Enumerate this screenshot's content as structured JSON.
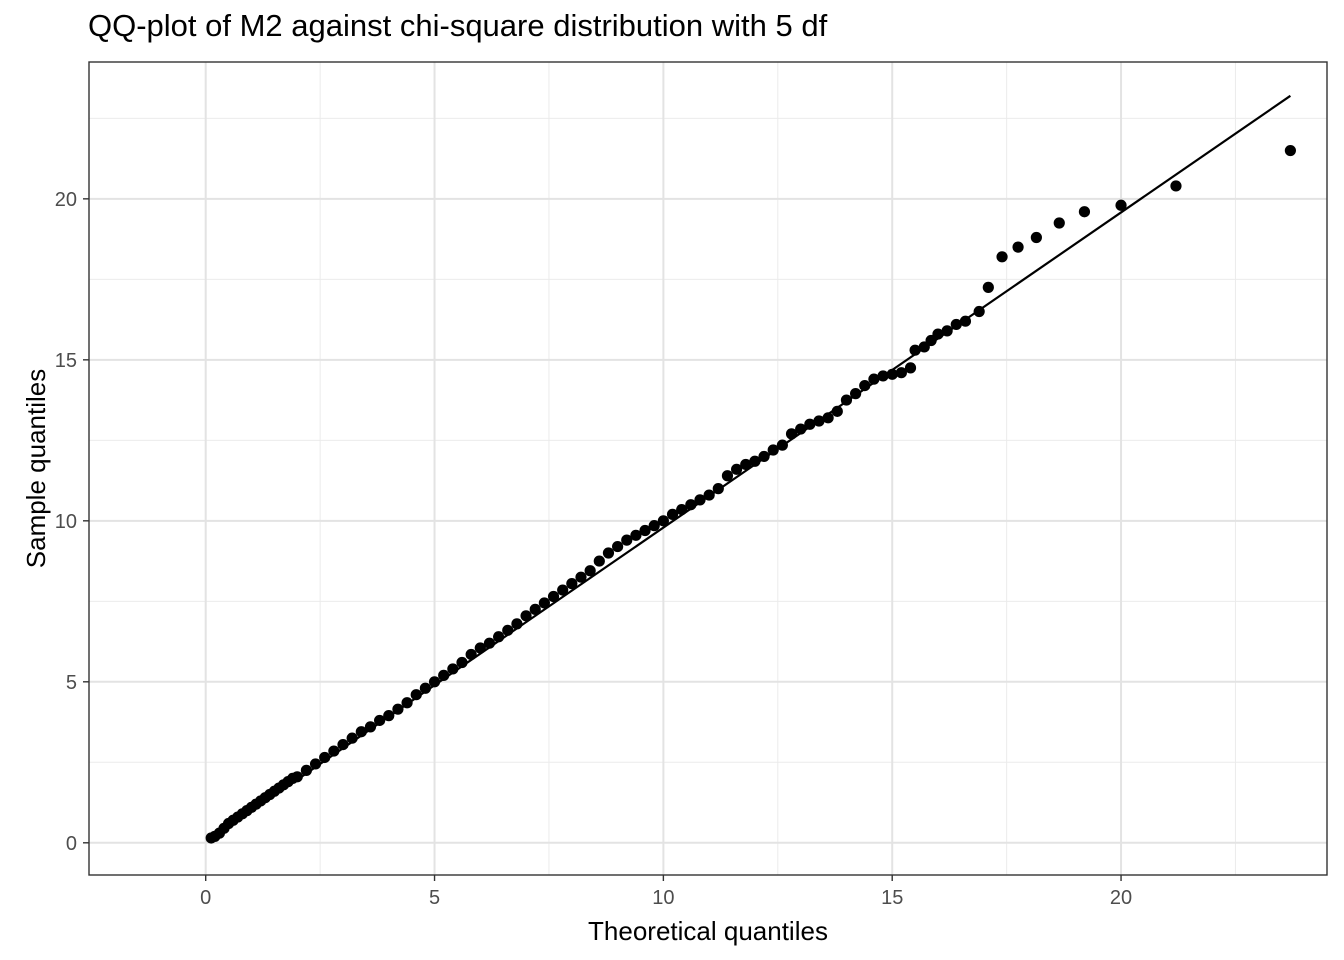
{
  "chart_data": {
    "type": "scatter",
    "title": "QQ-plot of M2 against chi-square distribution with 5 df",
    "xlabel": "Theoretical quantiles",
    "ylabel": "Sample quantiles",
    "xlim": [
      -2.55,
      24.5
    ],
    "ylim": [
      -1.0,
      24.25
    ],
    "x_ticks": [
      0,
      5,
      10,
      15,
      20
    ],
    "y_ticks": [
      0,
      5,
      10,
      15,
      20
    ],
    "x_tick_labels": [
      "0",
      "5",
      "10",
      "15",
      "20"
    ],
    "y_tick_labels": [
      "0",
      "5",
      "10",
      "15",
      "20"
    ],
    "grid": true,
    "legend": "none",
    "reference_line": {
      "x": [
        0.1,
        23.7
      ],
      "y": [
        0.1,
        23.2
      ]
    },
    "series": [
      {
        "points_x": [
          0.12,
          0.2,
          0.3,
          0.4,
          0.5,
          0.6,
          0.7,
          0.8,
          0.9,
          1.0,
          1.1,
          1.2,
          1.3,
          1.4,
          1.5,
          1.6,
          1.7,
          1.8,
          1.9,
          2.0,
          2.2,
          2.4,
          2.6,
          2.8,
          3.0,
          3.2,
          3.4,
          3.6,
          3.8,
          4.0,
          4.2,
          4.4,
          4.6,
          4.8,
          5.0,
          5.2,
          5.4,
          5.6,
          5.8,
          6.0,
          6.2,
          6.4,
          6.6,
          6.8,
          7.0,
          7.2,
          7.4,
          7.6,
          7.8,
          8.0,
          8.2,
          8.4,
          8.6,
          8.8,
          9.0,
          9.2,
          9.4,
          9.6,
          9.8,
          10.0,
          10.2,
          10.4,
          10.6,
          10.8,
          11.0,
          11.2,
          11.4,
          11.6,
          11.8,
          12.0,
          12.2,
          12.4,
          12.6,
          12.8,
          13.0,
          13.2,
          13.4,
          13.6,
          13.8,
          14.0,
          14.2,
          14.4,
          14.6,
          14.8,
          15.0,
          15.2,
          15.4,
          15.5,
          15.7,
          15.85,
          16.0,
          16.2,
          16.4,
          16.6,
          16.9,
          17.1,
          17.4,
          17.75,
          18.15,
          18.65,
          19.2,
          20.0,
          21.2,
          23.7
        ],
        "points_y": [
          0.15,
          0.2,
          0.3,
          0.45,
          0.6,
          0.7,
          0.8,
          0.9,
          1.0,
          1.1,
          1.2,
          1.3,
          1.4,
          1.5,
          1.6,
          1.7,
          1.8,
          1.9,
          2.0,
          2.05,
          2.25,
          2.45,
          2.65,
          2.85,
          3.05,
          3.25,
          3.45,
          3.6,
          3.8,
          3.95,
          4.15,
          4.35,
          4.6,
          4.8,
          5.0,
          5.2,
          5.4,
          5.6,
          5.85,
          6.05,
          6.2,
          6.4,
          6.6,
          6.8,
          7.05,
          7.25,
          7.45,
          7.65,
          7.85,
          8.05,
          8.25,
          8.45,
          8.75,
          9.0,
          9.2,
          9.4,
          9.55,
          9.7,
          9.85,
          10.0,
          10.2,
          10.35,
          10.5,
          10.65,
          10.8,
          11.0,
          11.4,
          11.6,
          11.75,
          11.85,
          12.0,
          12.2,
          12.35,
          12.7,
          12.85,
          13.0,
          13.1,
          13.2,
          13.4,
          13.75,
          13.95,
          14.2,
          14.4,
          14.5,
          14.55,
          14.6,
          14.75,
          15.3,
          15.4,
          15.6,
          15.8,
          15.9,
          16.1,
          16.2,
          16.5,
          17.25,
          18.2,
          18.5,
          18.8,
          19.25,
          19.6,
          19.8,
          20.4,
          21.5
        ]
      }
    ]
  }
}
